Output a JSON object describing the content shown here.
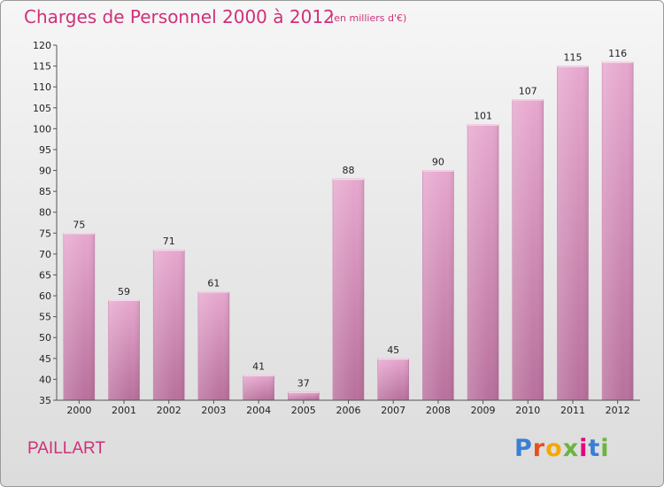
{
  "header": {
    "title": "Charges de Personnel 2000 à 2012",
    "subtitle": "(en milliers d'€)"
  },
  "footer": {
    "place": "PAILLART",
    "logo": "Proxiti",
    "logo_colors": [
      "#3a7fd5",
      "#e94f1d",
      "#f5a800",
      "#6cb33f",
      "#e6007e",
      "#3a7fd5",
      "#6cb33f"
    ]
  },
  "chart_data": {
    "type": "bar",
    "categories": [
      "2000",
      "2001",
      "2002",
      "2003",
      "2004",
      "2005",
      "2006",
      "2007",
      "2008",
      "2009",
      "2010",
      "2011",
      "2012"
    ],
    "values": [
      75,
      59,
      71,
      61,
      41,
      37,
      88,
      45,
      90,
      101,
      107,
      115,
      116
    ],
    "ylim": [
      35,
      120
    ],
    "yticks": [
      35,
      40,
      45,
      50,
      55,
      60,
      65,
      70,
      75,
      80,
      85,
      90,
      95,
      100,
      105,
      110,
      115,
      120
    ],
    "grid": false,
    "bar_color": "#d98bb7"
  }
}
